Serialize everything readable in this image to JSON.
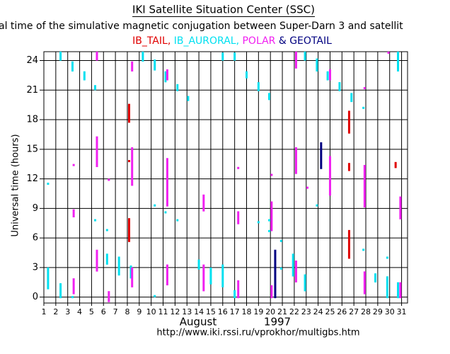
{
  "chart_data": {
    "type": "interval",
    "title": "IKI Satellite Situation Center (SSC)",
    "subtitle": "al time of the simulative magnetic conjugation between Super-Darn 3 and satellit",
    "legend_joiners": [
      ", ",
      ", ",
      " & "
    ],
    "x_label": "August",
    "x_label_year": "1997",
    "y_label": "Universal time (hours)",
    "url": "http://www.iki.rssi.ru/vprokhor/multigbs.htm",
    "xlim": [
      1,
      31.5
    ],
    "xticks": [
      1,
      2,
      3,
      4,
      5,
      6,
      7,
      8,
      9,
      10,
      11,
      12,
      13,
      14,
      15,
      16,
      17,
      18,
      19,
      20,
      21,
      22,
      23,
      24,
      25,
      26,
      27,
      28,
      29,
      30,
      31
    ],
    "ylim": [
      -0.6,
      24.9
    ],
    "yticks": [
      0,
      3,
      6,
      9,
      12,
      15,
      18,
      21,
      24
    ],
    "grid": true,
    "series": [
      {
        "name": "IB_TAIL",
        "color": "#e00000",
        "x": [
          8.15,
          8.15,
          8.15,
          26.6,
          26.6,
          26.6,
          30.5
        ],
        "y0": [
          17.8,
          5.7,
          13.8,
          16.7,
          12.9,
          4.0,
          13.2
        ],
        "y1": [
          19.5,
          7.9,
          13.8,
          18.8,
          13.5,
          6.7,
          13.6
        ]
      },
      {
        "name": "IB_AURORAL",
        "color": "#00e0f0",
        "x": [
          1.35,
          1.35,
          2.4,
          2.4,
          3.4,
          3.4,
          4.4,
          5.3,
          5.3,
          6.3,
          6.3,
          7.3,
          8.3,
          9.3,
          10.3,
          10.3,
          10.3,
          11.2,
          11.2,
          12.2,
          12.2,
          13.1,
          14.0,
          15.0,
          16.0,
          16.0,
          17.0,
          17.0,
          18.0,
          19.0,
          19.0,
          19.9,
          19.9,
          19.9,
          20.9,
          20.9,
          21.9,
          22.9,
          22.9,
          23.9,
          23.9,
          24.8,
          25.8,
          26.8,
          27.8,
          27.8,
          28.8,
          29.8,
          29.8,
          30.7,
          30.7
        ],
        "y0": [
          0.9,
          11.5,
          0,
          24.1,
          23.0,
          0,
          22.1,
          21.1,
          7.8,
          3.4,
          6.8,
          2.3,
          2.0,
          24.0,
          23.1,
          9.3,
          0.1,
          21.9,
          8.6,
          21.0,
          7.8,
          20.0,
          2.9,
          1.4,
          24.1,
          1.1,
          24.1,
          0,
          22.3,
          21.0,
          7.6,
          20.1,
          6.7,
          7.8,
          5.7,
          2.9,
          2.2,
          24.1,
          0.7,
          23.0,
          9.3,
          22.1,
          21.0,
          19.9,
          19.2,
          4.8,
          1.6,
          4.0,
          0,
          23.0,
          0
        ],
        "y1": [
          2.9,
          11.5,
          1.3,
          24.8,
          23.8,
          0,
          22.8,
          21.4,
          7.8,
          4.3,
          6.8,
          4.0,
          3.1,
          24.8,
          24.0,
          9.3,
          0.1,
          22.8,
          8.6,
          21.5,
          7.8,
          20.3,
          3.7,
          2.9,
          24.7,
          3.2,
          24.7,
          0.6,
          22.8,
          21.7,
          7.6,
          20.6,
          6.7,
          7.8,
          5.7,
          2.9,
          4.3,
          24.8,
          2.2,
          24.1,
          9.3,
          22.8,
          21.7,
          20.6,
          19.2,
          4.8,
          2.3,
          4.0,
          2.0,
          24.8,
          1.4
        ]
      },
      {
        "name": "POLAR",
        "color": "#f020f0",
        "x": [
          3.5,
          3.5,
          3.5,
          5.45,
          5.45,
          5.45,
          6.45,
          6.45,
          8.4,
          8.4,
          8.4,
          11.35,
          11.35,
          11.35,
          14.4,
          14.4,
          17.3,
          17.3,
          17.3,
          20.1,
          20.1,
          20.1,
          22.15,
          22.15,
          22.15,
          23.1,
          25.0,
          25.0,
          27.9,
          27.9,
          27.9,
          29.9,
          30.9,
          30.9
        ],
        "y0": [
          0.4,
          8.2,
          13.4,
          24.1,
          2.7,
          13.3,
          -0.4,
          11.9,
          1.1,
          11.4,
          23.0,
          1.3,
          9.3,
          22.1,
          8.8,
          0.7,
          7.5,
          13.1,
          0,
          6.8,
          12.4,
          0,
          1.6,
          12.6,
          23.3,
          11.1,
          22.1,
          10.4,
          9.2,
          0.4,
          21.2,
          24.8,
          8.0,
          0
        ],
        "y1": [
          1.8,
          8.8,
          13.4,
          24.8,
          4.7,
          16.2,
          0.5,
          11.9,
          2.9,
          15.1,
          23.8,
          3.2,
          14.0,
          23.0,
          10.3,
          3.2,
          8.6,
          13.1,
          1.6,
          9.6,
          12.4,
          1.1,
          3.6,
          15.1,
          24.8,
          11.1,
          23.0,
          14.2,
          13.3,
          2.5,
          21.2,
          24.8,
          10.1,
          1.4
        ]
      },
      {
        "name": "GEOTAIL",
        "color": "#000080",
        "x": [
          20.4,
          24.25
        ],
        "y0": [
          0,
          13.1
        ],
        "y1": [
          4.7,
          15.6
        ]
      }
    ]
  }
}
